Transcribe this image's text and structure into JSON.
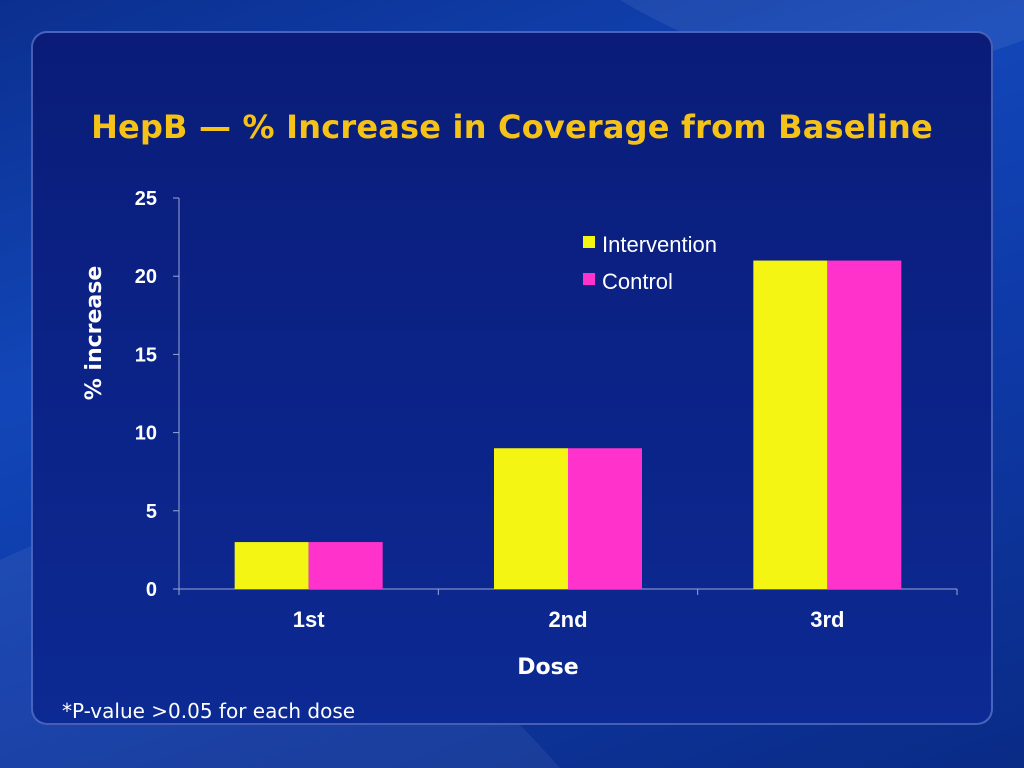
{
  "slide": {
    "title": "HepB — % Increase in Coverage from Baseline",
    "footnote": "*P-value >0.05 for each dose"
  },
  "colors": {
    "title": "#f5c218",
    "intervention": "#f5f514",
    "control": "#ff33cc",
    "text": "#ffffff",
    "axis": "#9aa6d8"
  },
  "chart_data": {
    "type": "bar",
    "categories": [
      "1st",
      "2nd",
      "3rd"
    ],
    "series": [
      {
        "name": "Intervention",
        "values": [
          3,
          9,
          21
        ]
      },
      {
        "name": "Control",
        "values": [
          3,
          9,
          21
        ]
      }
    ],
    "xlabel": "Dose",
    "ylabel": "% increase",
    "ylim": [
      0,
      25
    ],
    "yticks": [
      "0",
      "5",
      "10",
      "15",
      "20",
      "25"
    ],
    "grid": false,
    "legend": "top-right"
  }
}
